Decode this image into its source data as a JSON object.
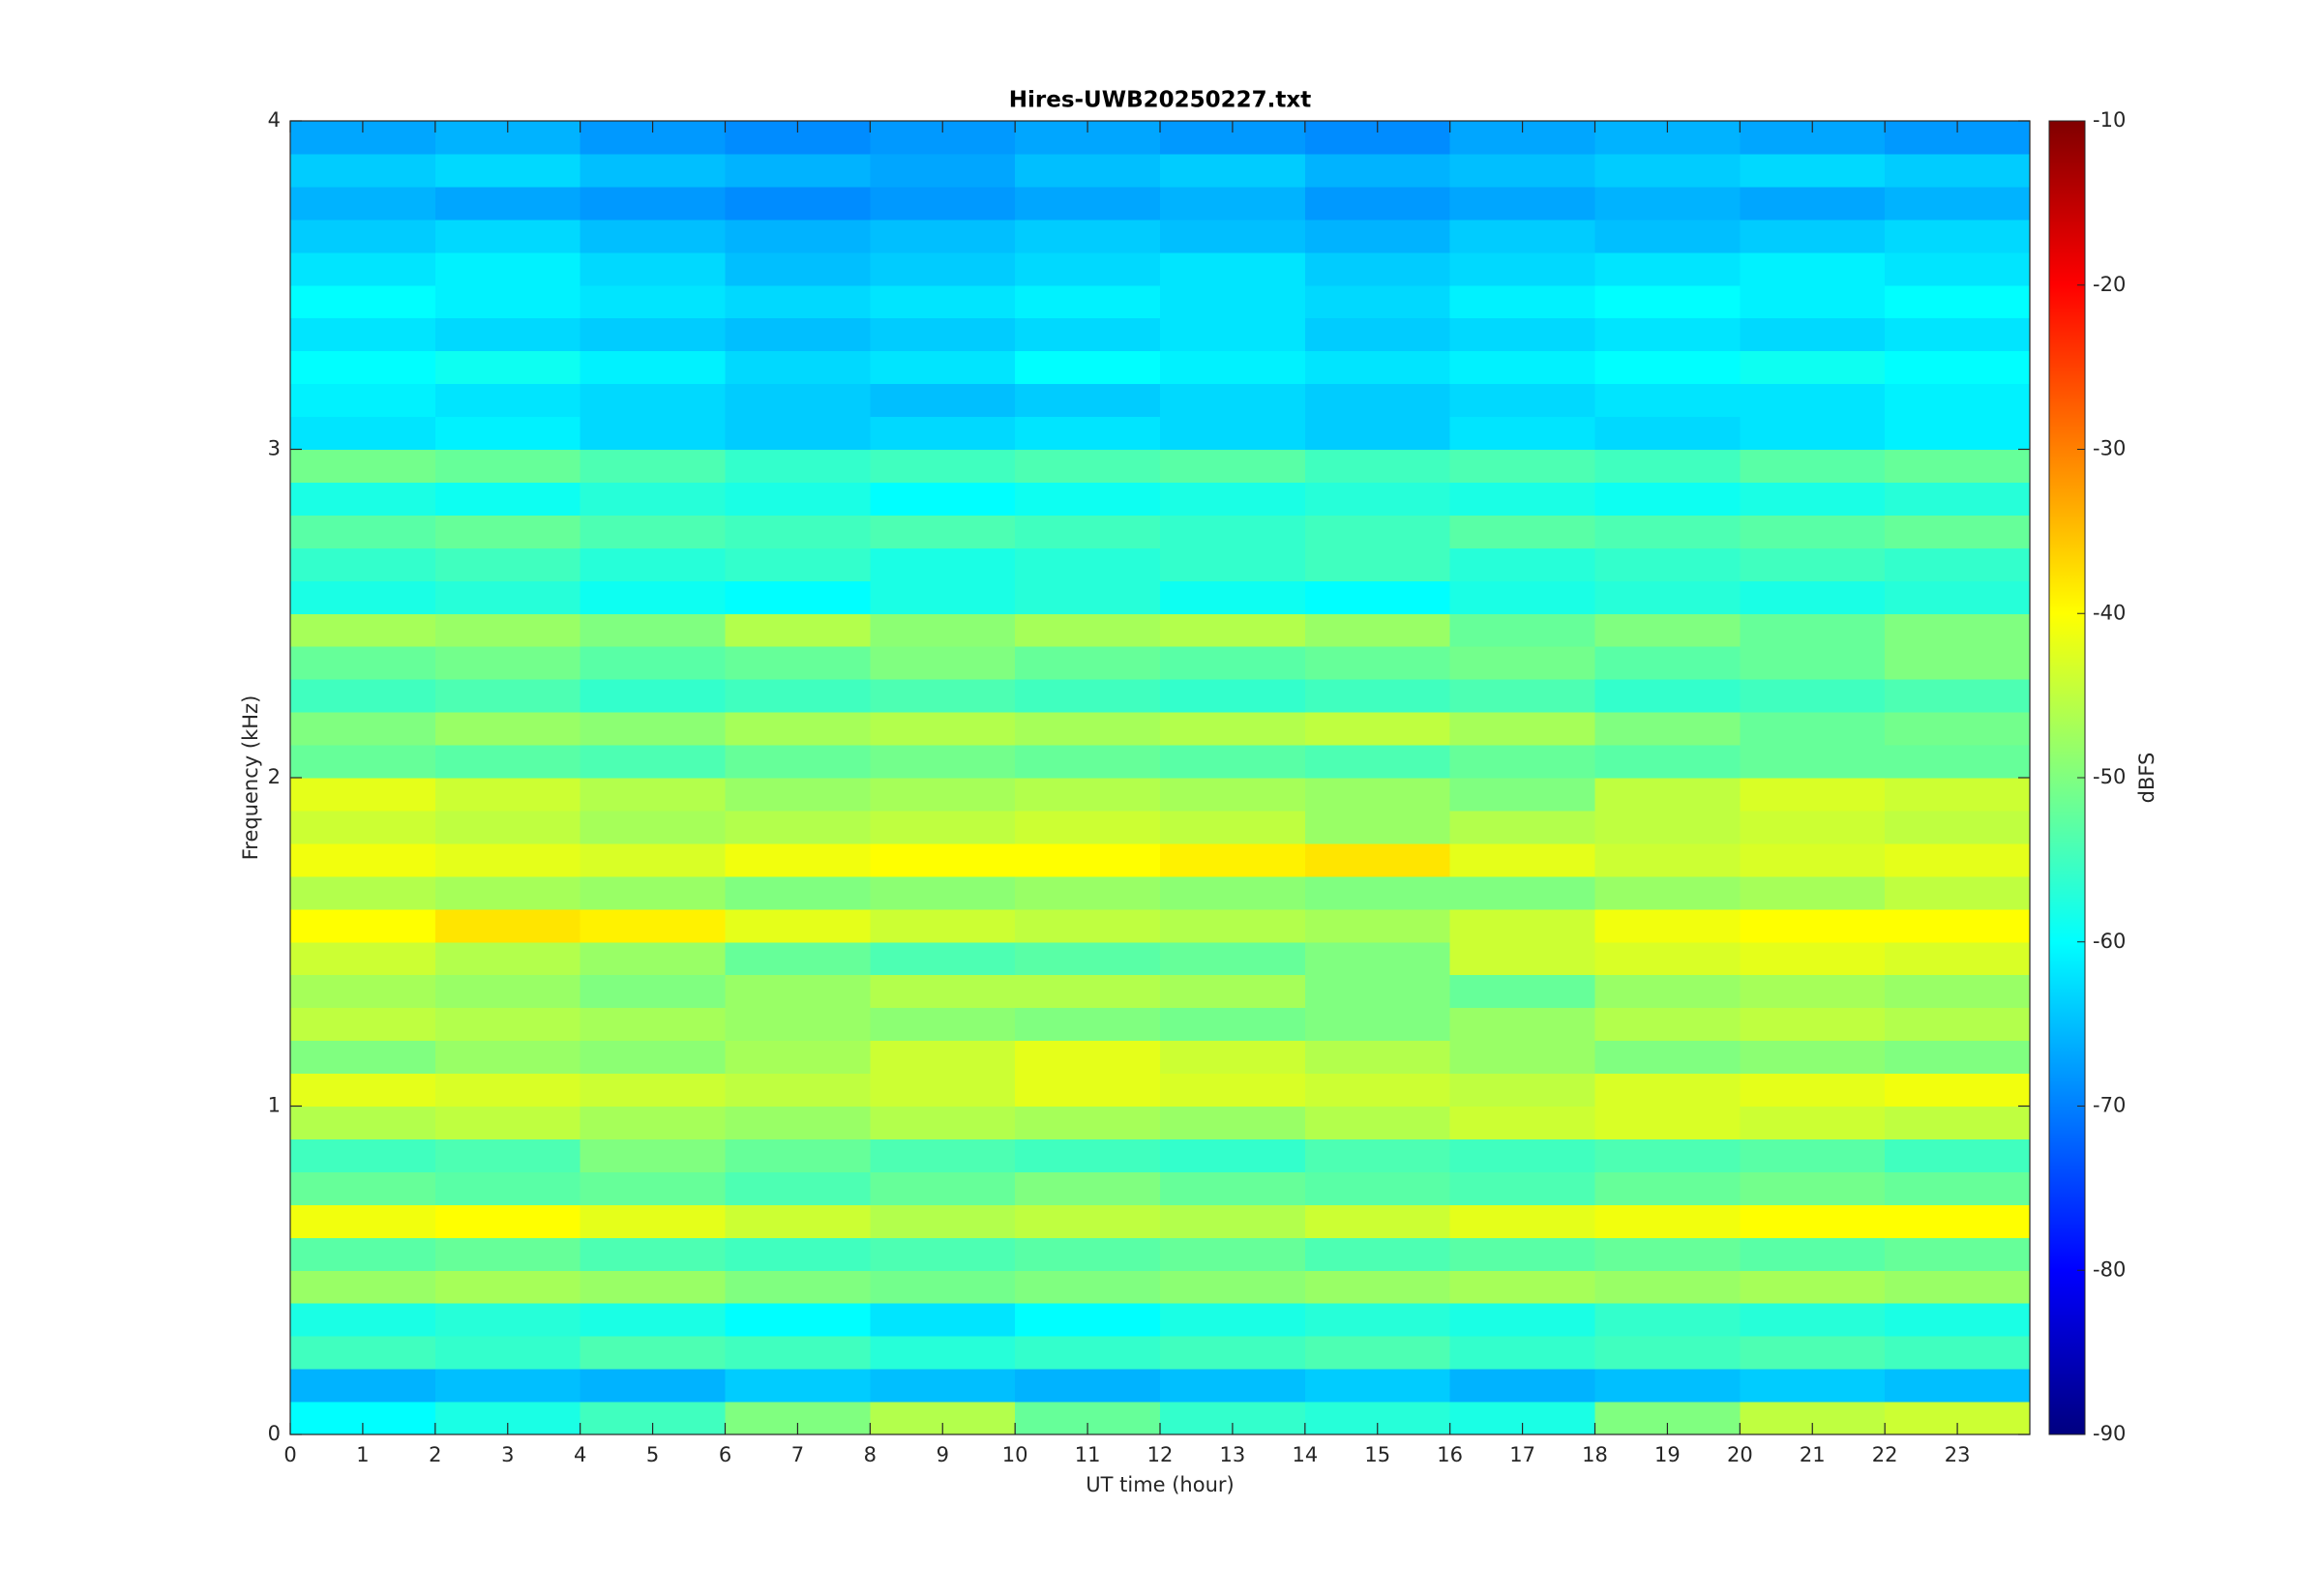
{
  "chart_data": {
    "type": "heatmap",
    "title": "Hires-UWB20250227.txt",
    "xlabel": "UT time (hour)",
    "ylabel": "Frequency (kHz)",
    "colorbar_label": "dBFS",
    "colormap": "jet",
    "xbins": [
      0,
      2,
      4,
      6,
      8,
      10,
      12,
      14,
      16,
      18,
      20,
      22,
      24
    ],
    "ybins": [
      0,
      0.1,
      0.2,
      0.3,
      0.4,
      0.5,
      0.6,
      0.7,
      0.8,
      0.9,
      1.0,
      1.1,
      1.2,
      1.3,
      1.4,
      1.5,
      1.6,
      1.7,
      1.8,
      1.9,
      2.0,
      2.1,
      2.2,
      2.3,
      2.4,
      2.5,
      2.6,
      2.7,
      2.8,
      2.9,
      3.0,
      3.1,
      3.2,
      3.3,
      3.4,
      3.5,
      3.6,
      3.7,
      3.8,
      3.9,
      4.0
    ],
    "values": [
      [
        -60,
        -58,
        -55,
        -50,
        -46,
        -52,
        -56,
        -57,
        -58,
        -50,
        -45,
        -44
      ],
      [
        -66,
        -65,
        -66,
        -64,
        -65,
        -66,
        -65,
        -64,
        -66,
        -65,
        -64,
        -65
      ],
      [
        -55,
        -56,
        -54,
        -55,
        -57,
        -56,
        -55,
        -54,
        -56,
        -55,
        -54,
        -55
      ],
      [
        -58,
        -57,
        -58,
        -60,
        -62,
        -60,
        -58,
        -57,
        -58,
        -56,
        -57,
        -58
      ],
      [
        -48,
        -47,
        -48,
        -50,
        -51,
        -50,
        -49,
        -48,
        -47,
        -48,
        -47,
        -48
      ],
      [
        -53,
        -52,
        -54,
        -55,
        -54,
        -53,
        -52,
        -54,
        -53,
        -52,
        -53,
        -52
      ],
      [
        -41,
        -40,
        -42,
        -44,
        -46,
        -45,
        -46,
        -44,
        -42,
        -41,
        -40,
        -40
      ],
      [
        -52,
        -53,
        -52,
        -54,
        -52,
        -50,
        -52,
        -53,
        -54,
        -52,
        -51,
        -52
      ],
      [
        -55,
        -54,
        -50,
        -52,
        -54,
        -55,
        -56,
        -54,
        -55,
        -54,
        -53,
        -55
      ],
      [
        -46,
        -45,
        -47,
        -48,
        -46,
        -47,
        -48,
        -46,
        -44,
        -43,
        -44,
        -45
      ],
      [
        -42,
        -43,
        -44,
        -45,
        -44,
        -42,
        -43,
        -44,
        -45,
        -43,
        -42,
        -41
      ],
      [
        -50,
        -48,
        -49,
        -47,
        -44,
        -42,
        -44,
        -46,
        -48,
        -50,
        -49,
        -50
      ],
      [
        -45,
        -46,
        -47,
        -48,
        -49,
        -50,
        -51,
        -50,
        -48,
        -46,
        -45,
        -46
      ],
      [
        -47,
        -48,
        -50,
        -48,
        -46,
        -46,
        -47,
        -50,
        -52,
        -48,
        -47,
        -48
      ],
      [
        -44,
        -46,
        -48,
        -52,
        -54,
        -53,
        -52,
        -50,
        -44,
        -43,
        -42,
        -43
      ],
      [
        -40,
        -38,
        -39,
        -42,
        -44,
        -45,
        -46,
        -47,
        -44,
        -41,
        -40,
        -40
      ],
      [
        -46,
        -47,
        -48,
        -50,
        -49,
        -48,
        -49,
        -50,
        -50,
        -48,
        -47,
        -45
      ],
      [
        -41,
        -42,
        -43,
        -41,
        -40,
        -40,
        -39,
        -38,
        -42,
        -44,
        -43,
        -42
      ],
      [
        -44,
        -45,
        -47,
        -46,
        -45,
        -44,
        -45,
        -48,
        -46,
        -45,
        -44,
        -45
      ],
      [
        -42,
        -44,
        -46,
        -48,
        -47,
        -46,
        -47,
        -48,
        -50,
        -45,
        -43,
        -44
      ],
      [
        -52,
        -53,
        -54,
        -52,
        -51,
        -52,
        -53,
        -54,
        -52,
        -53,
        -52,
        -52
      ],
      [
        -50,
        -48,
        -49,
        -47,
        -46,
        -47,
        -46,
        -45,
        -47,
        -50,
        -52,
        -51
      ],
      [
        -55,
        -54,
        -56,
        -55,
        -54,
        -55,
        -56,
        -55,
        -54,
        -56,
        -55,
        -54
      ],
      [
        -52,
        -51,
        -53,
        -52,
        -50,
        -52,
        -53,
        -52,
        -51,
        -53,
        -52,
        -50
      ],
      [
        -47,
        -48,
        -50,
        -46,
        -49,
        -47,
        -46,
        -48,
        -52,
        -50,
        -52,
        -50
      ],
      [
        -58,
        -57,
        -59,
        -60,
        -58,
        -57,
        -59,
        -60,
        -58,
        -57,
        -58,
        -57
      ],
      [
        -56,
        -55,
        -57,
        -56,
        -58,
        -57,
        -56,
        -55,
        -57,
        -56,
        -55,
        -56
      ],
      [
        -53,
        -52,
        -54,
        -55,
        -54,
        -55,
        -56,
        -55,
        -53,
        -54,
        -53,
        -52
      ],
      [
        -58,
        -59,
        -57,
        -58,
        -60,
        -59,
        -58,
        -57,
        -58,
        -59,
        -58,
        -57
      ],
      [
        -51,
        -52,
        -54,
        -56,
        -55,
        -54,
        -53,
        -55,
        -54,
        -55,
        -53,
        -52
      ],
      [
        -62,
        -61,
        -63,
        -64,
        -63,
        -62,
        -63,
        -64,
        -62,
        -63,
        -62,
        -61
      ],
      [
        -61,
        -62,
        -63,
        -64,
        -65,
        -64,
        -63,
        -64,
        -63,
        -62,
        -62,
        -61
      ],
      [
        -60,
        -59,
        -61,
        -63,
        -62,
        -60,
        -61,
        -62,
        -61,
        -60,
        -59,
        -60
      ],
      [
        -62,
        -63,
        -64,
        -65,
        -64,
        -63,
        -62,
        -64,
        -63,
        -62,
        -63,
        -62
      ],
      [
        -60,
        -61,
        -62,
        -63,
        -62,
        -61,
        -62,
        -63,
        -61,
        -60,
        -61,
        -60
      ],
      [
        -62,
        -61,
        -63,
        -65,
        -64,
        -63,
        -62,
        -64,
        -63,
        -62,
        -61,
        -62
      ],
      [
        -64,
        -63,
        -65,
        -66,
        -65,
        -64,
        -65,
        -66,
        -64,
        -65,
        -64,
        -63
      ],
      [
        -66,
        -67,
        -68,
        -69,
        -68,
        -67,
        -66,
        -68,
        -67,
        -66,
        -67,
        -66
      ],
      [
        -64,
        -63,
        -65,
        -66,
        -67,
        -65,
        -64,
        -66,
        -65,
        -64,
        -63,
        -64
      ],
      [
        -67,
        -66,
        -68,
        -69,
        -68,
        -67,
        -68,
        -69,
        -67,
        -66,
        -67,
        -68
      ]
    ],
    "xlim": [
      0,
      24
    ],
    "xticks": [
      0,
      1,
      2,
      3,
      4,
      5,
      6,
      7,
      8,
      9,
      10,
      11,
      12,
      13,
      14,
      15,
      16,
      17,
      18,
      19,
      20,
      21,
      22,
      23
    ],
    "ylim": [
      0,
      4
    ],
    "yticks": [
      0,
      1,
      2,
      3,
      4
    ],
    "clim": [
      -90,
      -10
    ],
    "cticks": [
      -90,
      -80,
      -70,
      -60,
      -50,
      -40,
      -30,
      -20,
      -10
    ]
  }
}
